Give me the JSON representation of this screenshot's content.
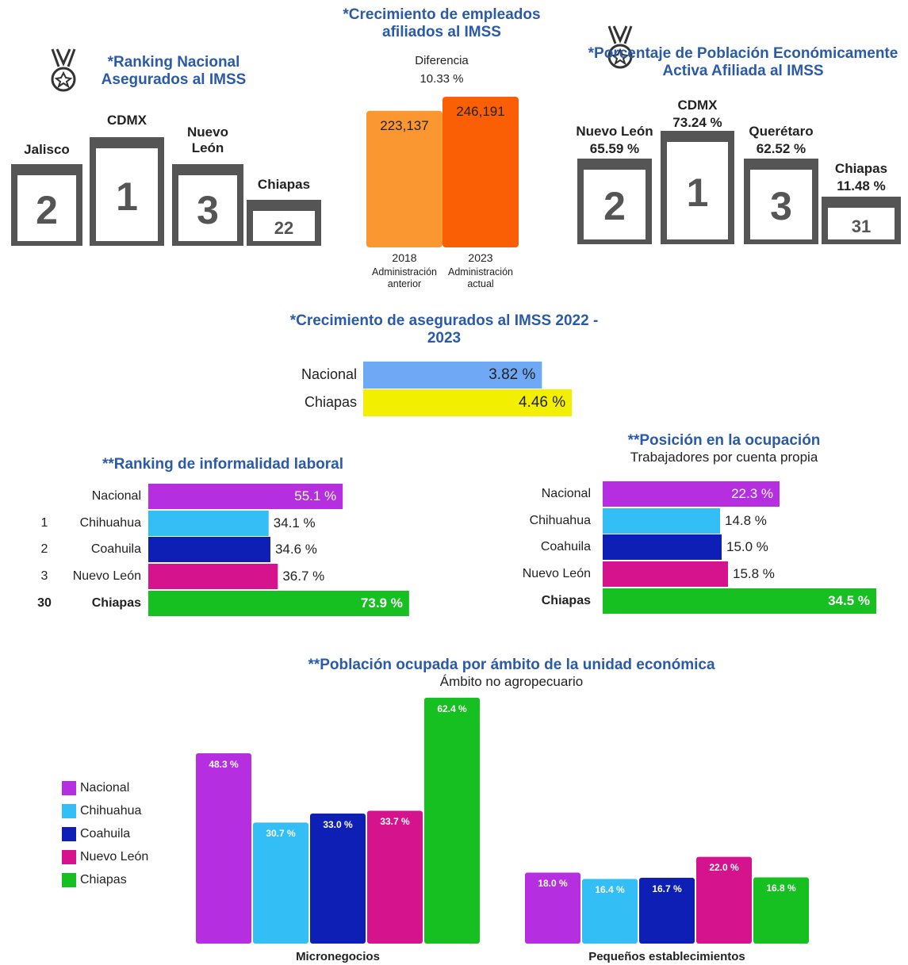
{
  "podium_imss": {
    "title": "*Ranking Nacional Asegurados al IMSS",
    "places": [
      {
        "name": "Jalisco",
        "rank": 2
      },
      {
        "name": "CDMX",
        "rank": 1
      },
      {
        "name": "Nuevo León",
        "rank": 3
      },
      {
        "name": "Chiapas",
        "rank": 22
      }
    ]
  },
  "podium_pea": {
    "title": "*Porcentaje de Población Económicamente Activa Afiliada al IMSS",
    "places": [
      {
        "name": "Nuevo León",
        "value": "65.59 %",
        "rank": 2
      },
      {
        "name": "CDMX",
        "value": "73.24 %",
        "rank": 1
      },
      {
        "name": "Querétaro",
        "value": "62.52 %",
        "rank": 3
      },
      {
        "name": "Chiapas",
        "value": "11.48 %",
        "rank": 31
      }
    ]
  },
  "chart_data": [
    {
      "type": "bar",
      "title": "*Crecimiento de empleados afiliados al IMSS",
      "annotation": {
        "label": "Diferencia",
        "value": "10.33 %"
      },
      "categories": [
        "2018",
        "2023"
      ],
      "category_notes": [
        "Administración anterior",
        "Administración actual"
      ],
      "values": [
        223137,
        246191
      ],
      "value_labels": [
        "223,137",
        "246,191"
      ],
      "colors": [
        "#fb9731",
        "#fb5f06"
      ]
    },
    {
      "type": "hbar",
      "title": "*Crecimiento de asegurados al IMSS 2022 - 2023",
      "categories": [
        "Nacional",
        "Chiapas"
      ],
      "values": [
        3.82,
        4.46
      ],
      "value_labels": [
        "3.82 %",
        "4.46 %"
      ],
      "colors": [
        "#6fa8f5",
        "#f2ef00"
      ]
    },
    {
      "type": "hbar",
      "title": "**Ranking de informalidad laboral",
      "ranks": [
        null,
        1,
        2,
        3,
        30
      ],
      "categories": [
        "Nacional",
        "Chihuahua",
        "Coahuila",
        "Nuevo León",
        "Chiapas"
      ],
      "values": [
        55.1,
        34.1,
        34.6,
        36.7,
        73.9
      ],
      "value_labels": [
        "55.1 %",
        "34.1 %",
        "34.6 %",
        "36.7 %",
        "73.9 %"
      ],
      "colors": [
        "#b52ee0",
        "#33bef5",
        "#0d1fb5",
        "#d4138c",
        "#15c020"
      ]
    },
    {
      "type": "hbar",
      "title": "**Posición en la ocupación",
      "subtitle": "Trabajadores por cuenta propia",
      "categories": [
        "Nacional",
        "Chihuahua",
        "Coahuila",
        "Nuevo León",
        "Chiapas"
      ],
      "values": [
        22.3,
        14.8,
        15.0,
        15.8,
        34.5
      ],
      "value_labels": [
        "22.3 %",
        "14.8 %",
        "15.0 %",
        "15.8 %",
        "34.5 %"
      ],
      "colors": [
        "#b52ee0",
        "#33bef5",
        "#0d1fb5",
        "#d4138c",
        "#15c020"
      ]
    },
    {
      "type": "grouped_bar",
      "title": "**Población ocupada por ámbito de la unidad económica",
      "subtitle": "Ámbito no agropecuario",
      "categories": [
        "Micronegocios",
        "Pequeños establecimientos"
      ],
      "series": [
        {
          "name": "Nacional",
          "color": "#b52ee0",
          "values": [
            48.3,
            18.0
          ],
          "value_labels": [
            "48.3 %",
            "18.0 %"
          ]
        },
        {
          "name": "Chihuahua",
          "color": "#33bef5",
          "values": [
            30.7,
            16.4
          ],
          "value_labels": [
            "30.7 %",
            "16.4 %"
          ]
        },
        {
          "name": "Coahuila",
          "color": "#0d1fb5",
          "values": [
            33.0,
            16.7
          ],
          "value_labels": [
            "33.0 %",
            "16.7 %"
          ]
        },
        {
          "name": "Nuevo León",
          "color": "#d4138c",
          "values": [
            33.7,
            22.0
          ],
          "value_labels": [
            "33.7 %",
            "22.0 %"
          ]
        },
        {
          "name": "Chiapas",
          "color": "#15c020",
          "values": [
            62.4,
            16.8
          ],
          "value_labels": [
            "62.4 %",
            "16.8 %"
          ]
        }
      ]
    }
  ]
}
